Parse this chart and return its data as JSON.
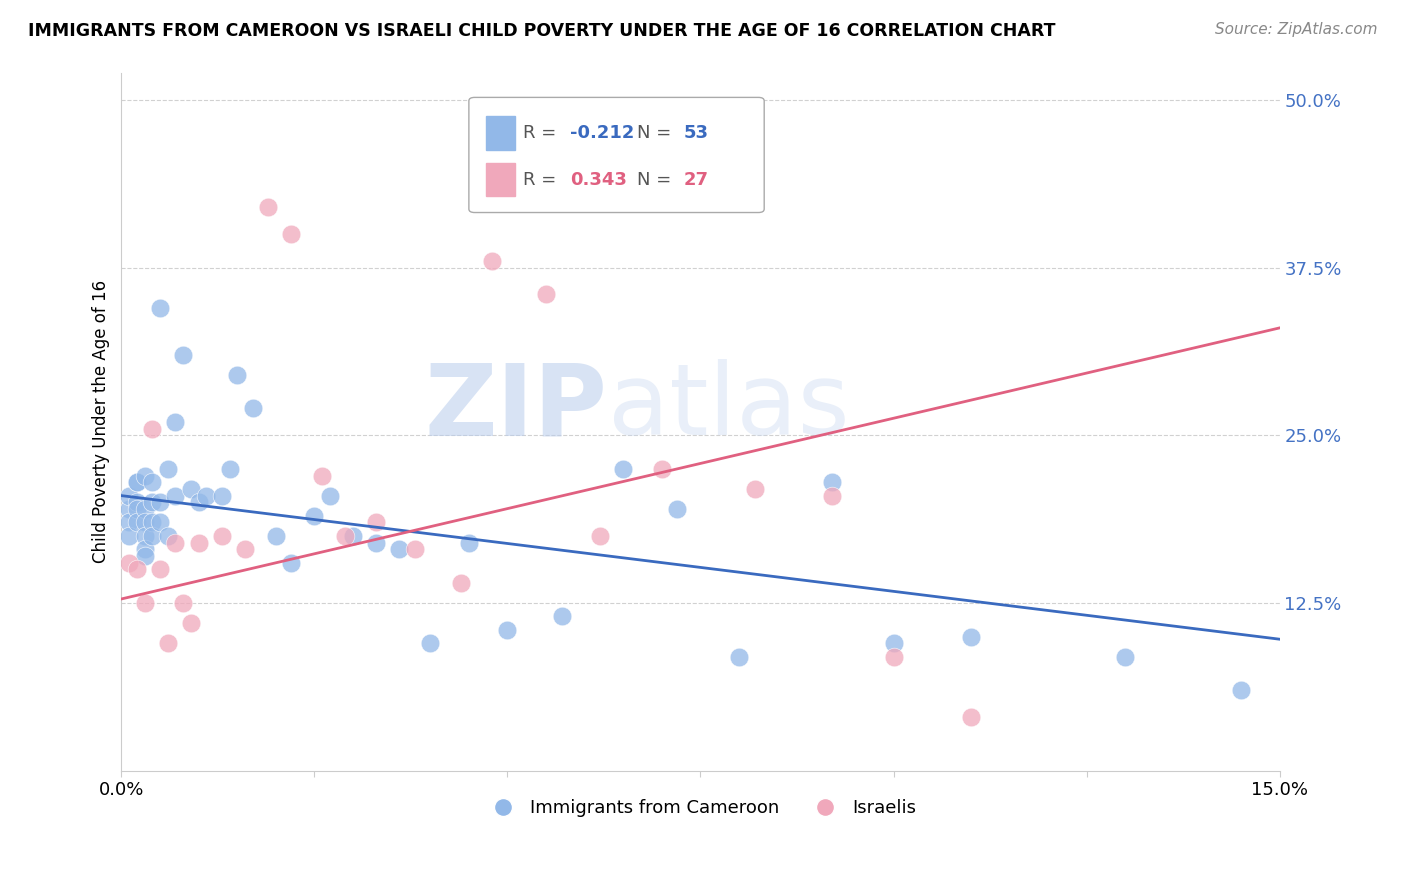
{
  "title": "IMMIGRANTS FROM CAMEROON VS ISRAELI CHILD POVERTY UNDER THE AGE OF 16 CORRELATION CHART",
  "source": "Source: ZipAtlas.com",
  "ylabel": "Child Poverty Under the Age of 16",
  "xlim": [
    0.0,
    0.15
  ],
  "ylim": [
    0.0,
    0.52
  ],
  "yticks": [
    0.125,
    0.25,
    0.375,
    0.5
  ],
  "ytick_labels": [
    "12.5%",
    "25.0%",
    "37.5%",
    "50.0%"
  ],
  "xticks": [
    0.0,
    0.025,
    0.05,
    0.075,
    0.1,
    0.125,
    0.15
  ],
  "xtick_labels": [
    "0.0%",
    "",
    "",
    "",
    "",
    "",
    "15.0%"
  ],
  "blue_R": -0.212,
  "blue_N": 53,
  "pink_R": 0.343,
  "pink_N": 27,
  "blue_color": "#92b8e8",
  "pink_color": "#f0a8bb",
  "blue_line_color": "#3a6abf",
  "pink_line_color": "#e06080",
  "legend_label_blue": "Immigrants from Cameroon",
  "legend_label_pink": "Israelis",
  "watermark_zip": "ZIP",
  "watermark_atlas": "atlas",
  "blue_x": [
    0.001,
    0.001,
    0.001,
    0.001,
    0.002,
    0.002,
    0.002,
    0.002,
    0.002,
    0.003,
    0.003,
    0.003,
    0.003,
    0.003,
    0.003,
    0.004,
    0.004,
    0.004,
    0.004,
    0.005,
    0.005,
    0.005,
    0.006,
    0.006,
    0.007,
    0.007,
    0.008,
    0.009,
    0.01,
    0.011,
    0.013,
    0.014,
    0.015,
    0.017,
    0.02,
    0.022,
    0.025,
    0.027,
    0.03,
    0.033,
    0.036,
    0.04,
    0.045,
    0.05,
    0.057,
    0.065,
    0.072,
    0.08,
    0.092,
    0.1,
    0.11,
    0.13,
    0.145
  ],
  "blue_y": [
    0.195,
    0.205,
    0.185,
    0.175,
    0.215,
    0.2,
    0.195,
    0.185,
    0.215,
    0.22,
    0.195,
    0.185,
    0.175,
    0.165,
    0.16,
    0.215,
    0.2,
    0.185,
    0.175,
    0.345,
    0.2,
    0.185,
    0.225,
    0.175,
    0.26,
    0.205,
    0.31,
    0.21,
    0.2,
    0.205,
    0.205,
    0.225,
    0.295,
    0.27,
    0.175,
    0.155,
    0.19,
    0.205,
    0.175,
    0.17,
    0.165,
    0.095,
    0.17,
    0.105,
    0.115,
    0.225,
    0.195,
    0.085,
    0.215,
    0.095,
    0.1,
    0.085,
    0.06
  ],
  "pink_x": [
    0.001,
    0.002,
    0.003,
    0.004,
    0.005,
    0.006,
    0.007,
    0.008,
    0.009,
    0.01,
    0.013,
    0.016,
    0.019,
    0.022,
    0.026,
    0.029,
    0.033,
    0.038,
    0.044,
    0.048,
    0.055,
    0.062,
    0.07,
    0.082,
    0.092,
    0.1,
    0.11
  ],
  "pink_y": [
    0.155,
    0.15,
    0.125,
    0.255,
    0.15,
    0.095,
    0.17,
    0.125,
    0.11,
    0.17,
    0.175,
    0.165,
    0.42,
    0.4,
    0.22,
    0.175,
    0.185,
    0.165,
    0.14,
    0.38,
    0.355,
    0.175,
    0.225,
    0.21,
    0.205,
    0.085,
    0.04
  ],
  "blue_trendline_x": [
    0.0,
    0.15
  ],
  "blue_trendline_y": [
    0.205,
    0.098
  ],
  "pink_trendline_x": [
    0.0,
    0.15
  ],
  "pink_trendline_y": [
    0.128,
    0.33
  ]
}
